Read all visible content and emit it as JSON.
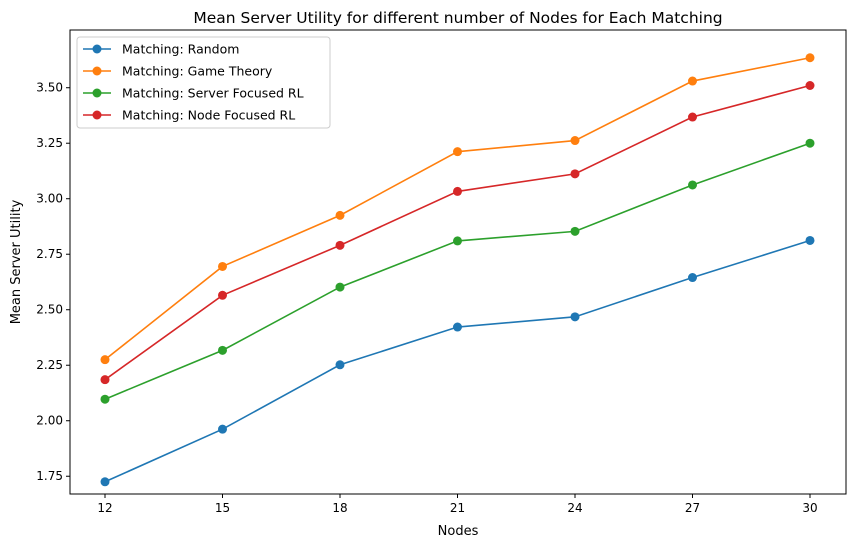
{
  "chart_data": {
    "type": "line",
    "title": "Mean Server Utility for different number of Nodes for Each Matching",
    "xlabel": "Nodes",
    "ylabel": "Mean Server Utility",
    "x": [
      12,
      15,
      18,
      21,
      24,
      27,
      30
    ],
    "x_ticks": [
      "12",
      "15",
      "18",
      "21",
      "24",
      "27",
      "30"
    ],
    "y_ticks": [
      "1.75",
      "2.00",
      "2.25",
      "2.50",
      "2.75",
      "3.00",
      "3.25",
      "3.50"
    ],
    "ylim": [
      1.67,
      3.76
    ],
    "grid": false,
    "legend_position": "top-left",
    "series": [
      {
        "name": "Matching: Random",
        "color": "#1f77b4",
        "values": [
          1.725,
          1.962,
          2.252,
          2.422,
          2.468,
          2.645,
          2.812
        ]
      },
      {
        "name": "Matching: Game Theory",
        "color": "#ff7f0e",
        "values": [
          2.275,
          2.695,
          2.925,
          3.212,
          3.262,
          3.53,
          3.635
        ]
      },
      {
        "name": "Matching: Server Focused RL",
        "color": "#2ca02c",
        "values": [
          2.097,
          2.317,
          2.602,
          2.81,
          2.853,
          3.062,
          3.25
        ]
      },
      {
        "name": "Matching: Node Focused RL",
        "color": "#d62728",
        "values": [
          2.185,
          2.565,
          2.79,
          3.033,
          3.112,
          3.368,
          3.51
        ]
      }
    ]
  }
}
